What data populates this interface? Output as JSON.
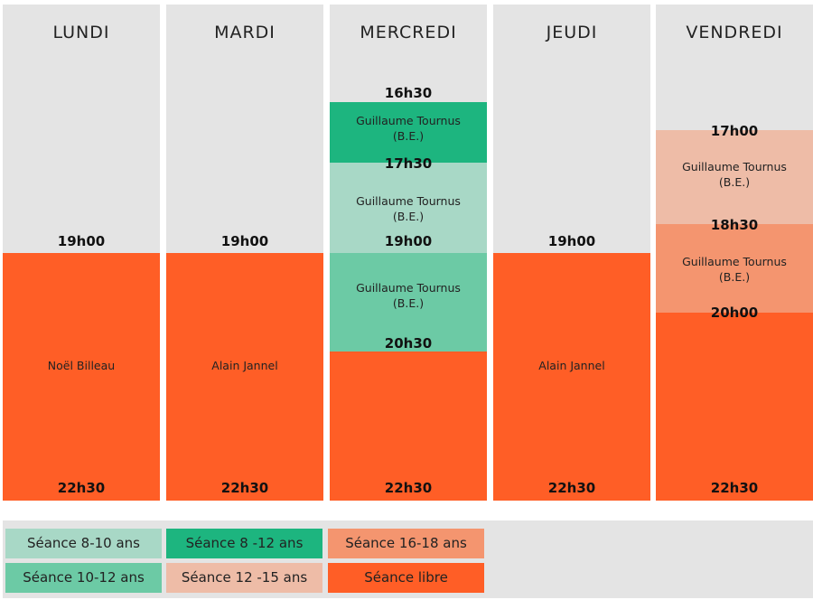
{
  "days": [
    "LUNDI",
    "MARDI",
    "MERCREDI",
    "JEUDI",
    "VENDREDI"
  ],
  "lundi": {
    "start": "19h00",
    "end": "22h30",
    "coach": "Noël Billeau"
  },
  "mardi": {
    "start": "19h00",
    "end": "22h30",
    "coach": "Alain Jannel"
  },
  "mercredi": {
    "t1": "16h30",
    "t2": "17h30",
    "t3": "19h00",
    "t4": "20h30",
    "t5": "22h30",
    "coach1": "Guillaume Tournus",
    "coach1_sub": "(B.E.)",
    "coach2": "Guillaume Tournus",
    "coach2_sub": "(B.E.)",
    "coach3": "Guillaume Tournus",
    "coach3_sub": "(B.E.)"
  },
  "jeudi": {
    "start": "19h00",
    "end": "22h30",
    "coach": "Alain Jannel"
  },
  "vendredi": {
    "t1": "17h00",
    "t2": "18h30",
    "t3": "20h00",
    "t4": "22h30",
    "coach1": "Guillaume Tournus",
    "coach1_sub": "(B.E.)",
    "coach2": "Guillaume Tournus",
    "coach2_sub": "(B.E.)"
  },
  "legend": [
    {
      "label": "Séance 8-10 ans",
      "color": "#a8d8c6"
    },
    {
      "label": "Séance 8 -12 ans",
      "color": "#1db57f"
    },
    {
      "label": "Séance 16-18 ans",
      "color": "#f4956f"
    },
    {
      "label": "Séance 10-12 ans",
      "color": "#6ccaa5"
    },
    {
      "label": "Séance 12 -15 ans",
      "color": "#eebca7"
    },
    {
      "label": "Séance libre",
      "color": "#ff5e26"
    }
  ],
  "colors": {
    "background": "#e4e4e4",
    "libre": "#ff5e26",
    "s8_10": "#a8d8c6",
    "s8_12": "#1db57f",
    "s10_12": "#6ccaa5",
    "s12_15": "#eebca7",
    "s16_18": "#f4956f"
  }
}
